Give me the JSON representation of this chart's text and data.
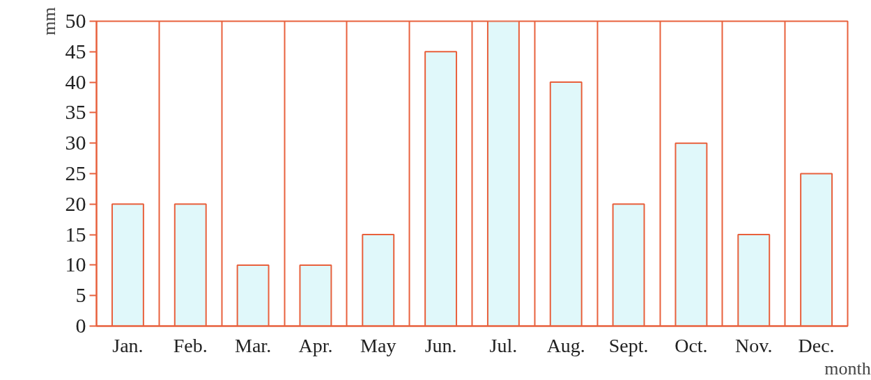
{
  "chart_data": {
    "type": "bar",
    "xlabel": "month",
    "ylabel": "mm",
    "categories": [
      "Jan.",
      "Feb.",
      "Mar.",
      "Apr.",
      "May",
      "Jun.",
      "Jul.",
      "Aug.",
      "Sept.",
      "Oct.",
      "Nov.",
      "Dec."
    ],
    "values": [
      20,
      20,
      10,
      10,
      15,
      45,
      50,
      40,
      20,
      30,
      15,
      25
    ],
    "color": "#e0f8fa",
    "ylim": [
      0,
      50
    ],
    "yticks": [
      0,
      5,
      10,
      15,
      20,
      25,
      30,
      35,
      40,
      45,
      50
    ],
    "grid": "x"
  }
}
